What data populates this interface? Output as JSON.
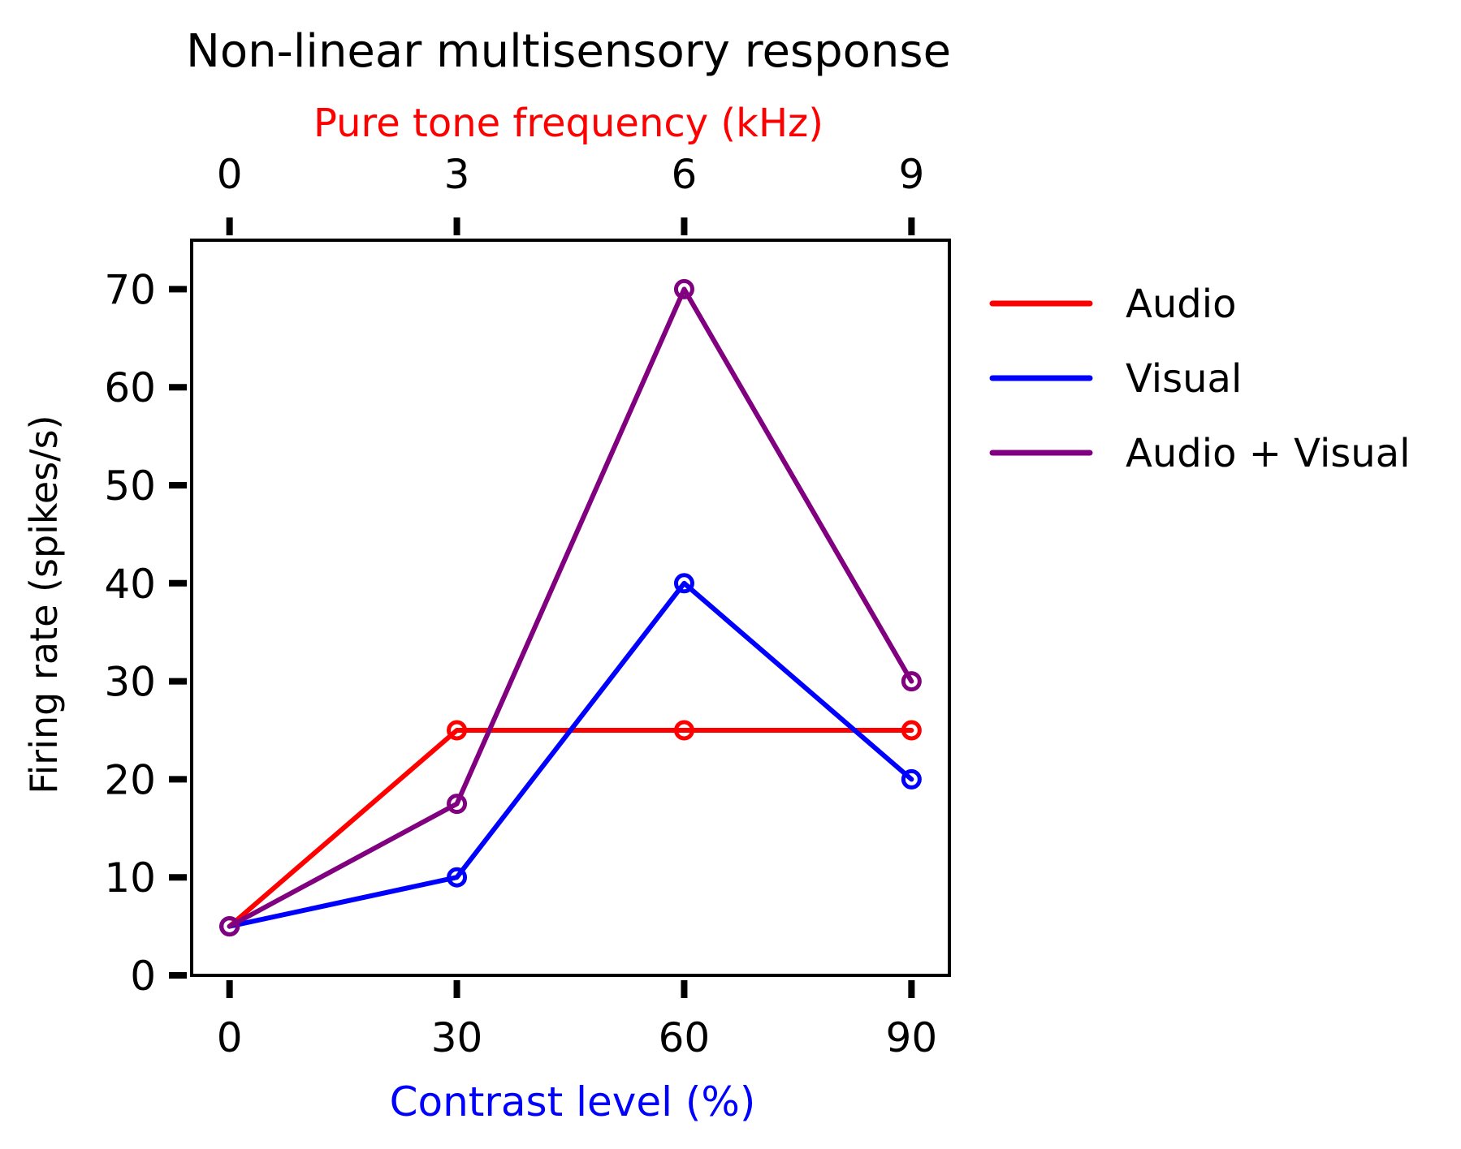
{
  "chart_data": {
    "type": "line",
    "title": "Non-linear multisensory response",
    "xlabel": "Contrast level (%)",
    "x2label": "Pure tone frequency (kHz)",
    "ylabel": "Firing rate (spikes/s)",
    "x_ticks": [
      "0",
      "30",
      "60",
      "90"
    ],
    "x2_ticks": [
      "0",
      "3",
      "6",
      "9"
    ],
    "y_ticks": [
      "0",
      "10",
      "20",
      "30",
      "40",
      "50",
      "60",
      "70"
    ],
    "xlim": [
      -5,
      95
    ],
    "ylim": [
      0,
      75
    ],
    "grid": false,
    "legend_position": "outside-right",
    "colors": {
      "xlabel": "#0000ff",
      "x2label": "#ff0000",
      "axis": "#000000"
    },
    "series": [
      {
        "name": "Audio",
        "color": "#ff0000",
        "x": [
          0,
          30,
          60,
          90
        ],
        "y": [
          5,
          25,
          25,
          25
        ]
      },
      {
        "name": "Visual",
        "color": "#0000ff",
        "x": [
          0,
          30,
          60,
          90
        ],
        "y": [
          5,
          10,
          40,
          20
        ]
      },
      {
        "name": "Audio + Visual",
        "color": "#800080",
        "x": [
          0,
          30,
          60,
          90
        ],
        "y": [
          5,
          17.5,
          70,
          30
        ]
      }
    ]
  }
}
